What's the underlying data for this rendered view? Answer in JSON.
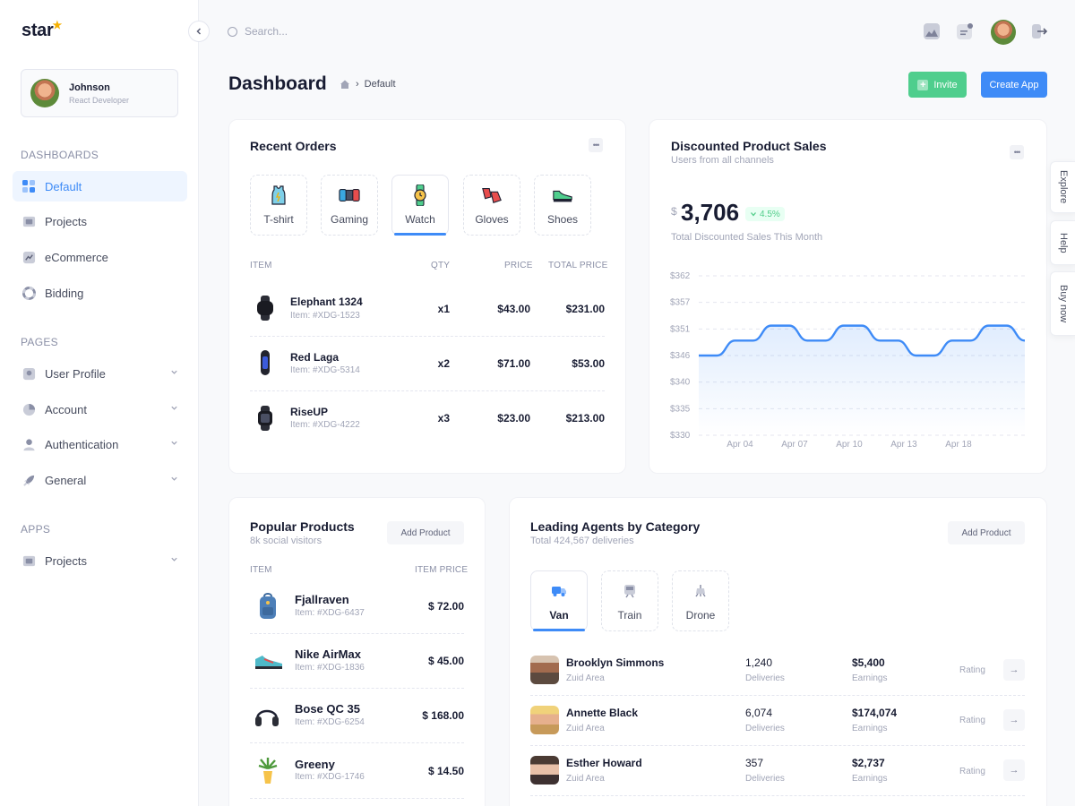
{
  "brand": {
    "name": "star"
  },
  "sidebar": {
    "user": {
      "name": "Johnson",
      "role": "React Developer"
    },
    "sections": {
      "dashboards": "DASHBOARDS",
      "pages": "PAGES",
      "apps": "APPS"
    },
    "dashboards": [
      {
        "label": "Default",
        "icon": "grid-icon",
        "active": true
      },
      {
        "label": "Projects",
        "icon": "folder-icon"
      },
      {
        "label": "eCommerce",
        "icon": "chart-icon"
      },
      {
        "label": "Bidding",
        "icon": "lifebuoy-icon"
      }
    ],
    "pages": [
      {
        "label": "User Profile",
        "icon": "profile-icon"
      },
      {
        "label": "Account",
        "icon": "pie-icon"
      },
      {
        "label": "Authentication",
        "icon": "user-icon"
      },
      {
        "label": "General",
        "icon": "rocket-icon"
      }
    ],
    "apps": [
      {
        "label": "Projects",
        "icon": "folder-icon"
      }
    ]
  },
  "topbar": {
    "search_placeholder": "Search..."
  },
  "header": {
    "title": "Dashboard",
    "breadcrumb": "Default",
    "invite_label": "Invite",
    "create_label": "Create App"
  },
  "recent_orders": {
    "title": "Recent Orders",
    "tabs": [
      "T-shirt",
      "Gaming",
      "Watch",
      "Gloves",
      "Shoes"
    ],
    "active_tab": "Watch",
    "columns": {
      "item": "ITEM",
      "qty": "QTY",
      "price": "PRICE",
      "total": "TOTAL PRICE"
    },
    "rows": [
      {
        "name": "Elephant 1324",
        "code": "Item: #XDG-1523",
        "qty": "x1",
        "price": "$43.00",
        "total": "$231.00"
      },
      {
        "name": "Red Laga",
        "code": "Item: #XDG-5314",
        "qty": "x2",
        "price": "$71.00",
        "total": "$53.00"
      },
      {
        "name": "RiseUP",
        "code": "Item: #XDG-4222",
        "qty": "x3",
        "price": "$23.00",
        "total": "$213.00"
      }
    ]
  },
  "discounted": {
    "title": "Discounted Product Sales",
    "subtitle": "Users from all channels",
    "currency": "$",
    "amount": "3,706",
    "change": "4.5%",
    "caption": "Total Discounted Sales This Month"
  },
  "chart_data": {
    "type": "area",
    "title": "",
    "xlabel": "",
    "ylabel": "",
    "y_ticks": [
      "$362",
      "$357",
      "$351",
      "$346",
      "$340",
      "$335",
      "$330"
    ],
    "x_ticks": [
      "Apr 04",
      "Apr 07",
      "Apr 10",
      "Apr 13",
      "Apr 18"
    ],
    "ylim": [
      330,
      362
    ],
    "grid": true,
    "legend": "none",
    "color": "#3e8bf7",
    "series": [
      {
        "values": [
          346,
          346,
          349,
          349,
          352,
          352,
          349,
          349,
          352,
          352,
          349,
          349,
          346,
          346,
          349,
          349,
          352,
          352,
          349
        ]
      }
    ]
  },
  "popular_products": {
    "title": "Popular Products",
    "subtitle": "8k social visitors",
    "button": "Add Product",
    "columns": {
      "item": "ITEM",
      "price": "ITEM PRICE"
    },
    "rows": [
      {
        "name": "Fjallraven",
        "code": "Item: #XDG-6437",
        "price": "$ 72.00"
      },
      {
        "name": "Nike AirMax",
        "code": "Item: #XDG-1836",
        "price": "$ 45.00"
      },
      {
        "name": "Bose QC 35",
        "code": "Item: #XDG-6254",
        "price": "$ 168.00"
      },
      {
        "name": "Greeny",
        "code": "Item: #XDG-1746",
        "price": "$ 14.50"
      }
    ]
  },
  "agents": {
    "title": "Leading Agents by Category",
    "subtitle": "Total 424,567 deliveries",
    "button": "Add Product",
    "tabs": [
      "Van",
      "Train",
      "Drone"
    ],
    "active_tab": "Van",
    "deliveries_label": "Deliveries",
    "earnings_label": "Earnings",
    "rating_label": "Rating",
    "rows": [
      {
        "name": "Brooklyn Simmons",
        "area": "Zuid Area",
        "deliveries": "1,240",
        "earnings": "$5,400"
      },
      {
        "name": "Annette Black",
        "area": "Zuid Area",
        "deliveries": "6,074",
        "earnings": "$174,074"
      },
      {
        "name": "Esther Howard",
        "area": "Zuid Area",
        "deliveries": "357",
        "earnings": "$2,737"
      }
    ]
  },
  "side_tabs": [
    "Explore",
    "Help",
    "Buy now"
  ]
}
